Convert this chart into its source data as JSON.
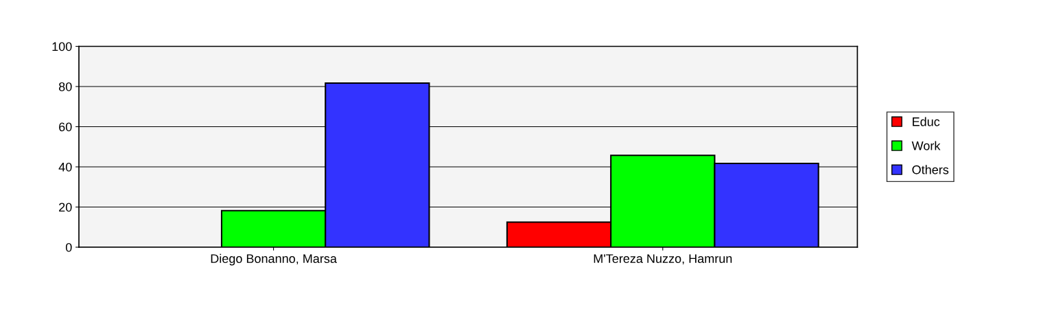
{
  "chart_data": {
    "type": "bar",
    "categories": [
      "Diego Bonanno, Marsa",
      "M'Tereza Nuzzo, Hamrun"
    ],
    "series": [
      {
        "name": "Educ",
        "color": "#ff0000",
        "values": [
          null,
          12.5
        ]
      },
      {
        "name": "Work",
        "color": "#00ff00",
        "values": [
          18.2,
          45.7
        ]
      },
      {
        "name": "Others",
        "color": "#3333ff",
        "values": [
          81.7,
          41.7
        ]
      }
    ],
    "ylim": [
      0,
      100
    ],
    "yticks": [
      0,
      20,
      40,
      60,
      80,
      100
    ],
    "grid": "y",
    "legend": "right"
  }
}
